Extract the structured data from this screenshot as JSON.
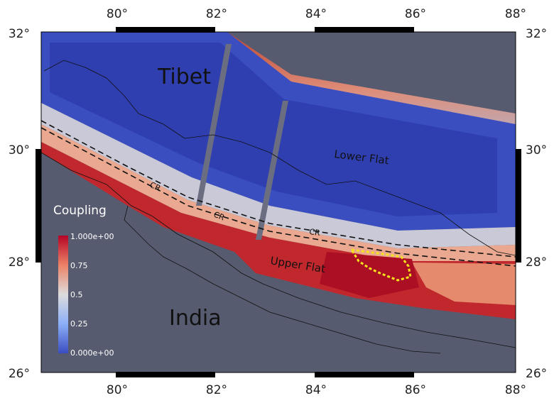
{
  "axes": {
    "x_ticks": [
      "80°",
      "82°",
      "84°",
      "86°",
      "88°"
    ],
    "y_ticks": [
      "32°",
      "30°",
      "28°",
      "26°"
    ]
  },
  "labels": {
    "tibet": "Tibet",
    "india": "India",
    "lower_flat": "Lower Flat",
    "upper_flat": "Upper Flat",
    "cr": "CR"
  },
  "colorbar": {
    "title": "Coupling",
    "ticks": [
      "1.000e+00",
      "0.75",
      "0.5",
      "0.25",
      "0.000e+00"
    ],
    "range": [
      0,
      1
    ]
  },
  "colors": {
    "background": "#575b6f",
    "low": "#3a4cc0",
    "mid": "#dddddd",
    "high": "#b40426",
    "rupture_outline": "#f5e11c"
  }
}
